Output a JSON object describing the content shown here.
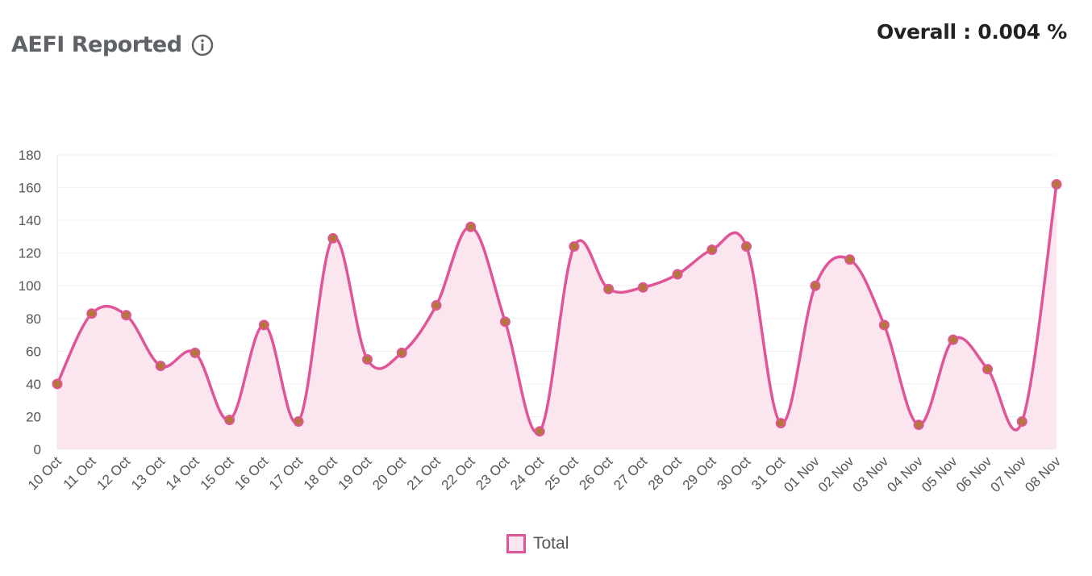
{
  "header": {
    "title": "AEFI Reported",
    "info_icon": "info-circle-icon",
    "overall": "Overall : 0.004 %"
  },
  "colors": {
    "line": "#e0559a",
    "fill": "#fbe6f0",
    "point": "#b5763a",
    "grid": "#f0f0f0",
    "title": "#5f6368"
  },
  "chart_data": {
    "type": "area",
    "title": "",
    "xlabel": "",
    "ylabel": "",
    "ylim": [
      0,
      180
    ],
    "yticks": [
      0,
      20,
      40,
      60,
      80,
      100,
      120,
      140,
      160,
      180
    ],
    "grid": true,
    "legend_position": "bottom-center",
    "categories": [
      "10 Oct",
      "11 Oct",
      "12 Oct",
      "13 Oct",
      "14 Oct",
      "15 Oct",
      "16 Oct",
      "17 Oct",
      "18 Oct",
      "19 Oct",
      "20 Oct",
      "21 Oct",
      "22 Oct",
      "23 Oct",
      "24 Oct",
      "25 Oct",
      "26 Oct",
      "27 Oct",
      "28 Oct",
      "29 Oct",
      "30 Oct",
      "31 Oct",
      "01 Nov",
      "02 Nov",
      "03 Nov",
      "04 Nov",
      "05 Nov",
      "06 Nov",
      "07 Nov",
      "08 Nov"
    ],
    "series": [
      {
        "name": "Total",
        "values": [
          40,
          83,
          82,
          51,
          59,
          18,
          76,
          17,
          129,
          55,
          59,
          88,
          136,
          78,
          11,
          124,
          98,
          99,
          107,
          122,
          124,
          16,
          100,
          116,
          76,
          15,
          67,
          49,
          17,
          162
        ]
      }
    ]
  }
}
